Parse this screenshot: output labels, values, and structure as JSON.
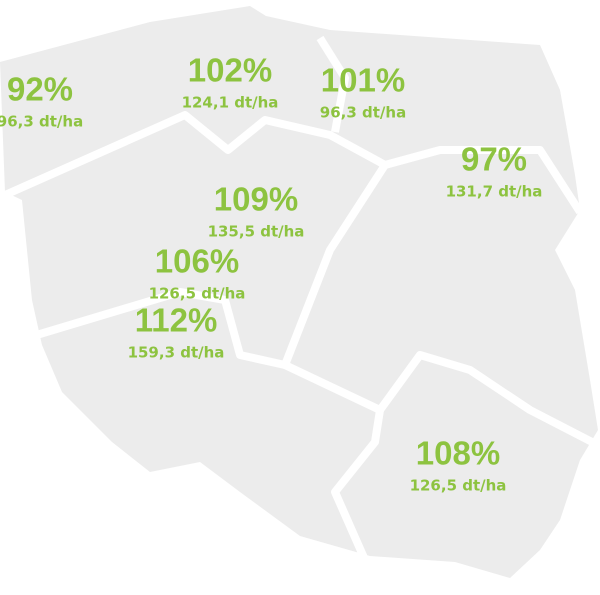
{
  "regions": [
    {
      "percent": "92%",
      "yield": "96,3 dt/ha"
    },
    {
      "percent": "102%",
      "yield": "124,1 dt/ha"
    },
    {
      "percent": "101%",
      "yield": "96,3 dt/ha"
    },
    {
      "percent": "97%",
      "yield": "131,7 dt/ha"
    },
    {
      "percent": "109%",
      "yield": "135,5 dt/ha"
    },
    {
      "percent": "106%",
      "yield": "126,5 dt/ha"
    },
    {
      "percent": "112%",
      "yield": "159,3 dt/ha"
    },
    {
      "percent": "108%",
      "yield": "126,5 dt/ha"
    }
  ]
}
